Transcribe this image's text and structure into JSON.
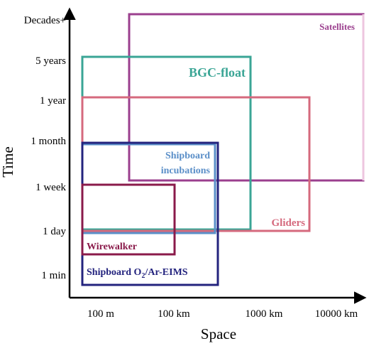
{
  "axes": {
    "x_title": "Space",
    "y_title": "Time",
    "x_ticks": [
      "100 m",
      "100 km",
      "1000 km",
      "10000 km"
    ],
    "y_ticks": [
      "Decades+",
      "5 years",
      "1 year",
      "1 month",
      "1 week",
      "1 day",
      "1 min"
    ]
  },
  "platforms": {
    "satellites": {
      "label": "Satellites",
      "color": "#9b3f8e"
    },
    "bgc_float": {
      "label": "BGC-float",
      "color": "#3aa595"
    },
    "gliders": {
      "label": "Gliders",
      "color": "#d5697d"
    },
    "shipboard_incubations": {
      "label_line1": "Shipboard",
      "label_line2": "incubations",
      "color": "#5b8fc8"
    },
    "wirewalker": {
      "label": "Wirewalker",
      "color": "#8a1a4a"
    },
    "shipboard_eims": {
      "label_prefix": "Shipboard O",
      "label_subscript": "2",
      "label_suffix": "/Ar-EIMS",
      "color": "#23237e"
    }
  }
}
